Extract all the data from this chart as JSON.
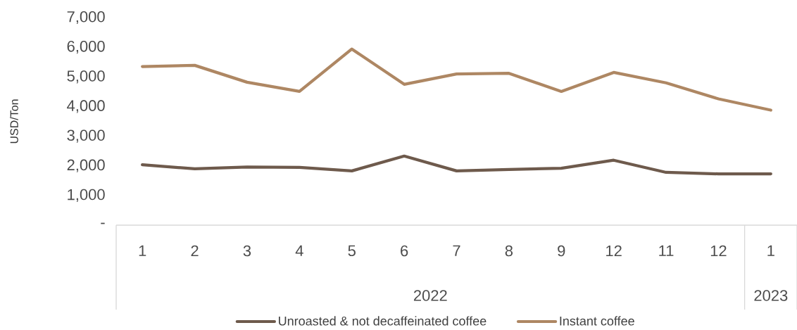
{
  "chart_data": {
    "type": "line",
    "ylabel": "USD/Ton",
    "categories": [
      "1",
      "2",
      "3",
      "4",
      "5",
      "6",
      "7",
      "8",
      "9",
      "12",
      "11",
      "12",
      "1"
    ],
    "series": [
      {
        "name": "Unroasted & not decaffeinated coffee",
        "color": "#6e5a4c",
        "values": [
          2040,
          1900,
          1960,
          1950,
          1830,
          2330,
          1830,
          1880,
          1920,
          2190,
          1780,
          1730,
          1730
        ]
      },
      {
        "name": "Instant coffee",
        "color": "#ae8763",
        "values": [
          5350,
          5390,
          4820,
          4510,
          5940,
          4750,
          5100,
          5120,
          4510,
          5150,
          4800,
          4260,
          3880
        ]
      }
    ],
    "ylim": [
      0,
      7000
    ],
    "yticks": [
      {
        "value": 0,
        "label": "-"
      },
      {
        "value": 1000,
        "label": "1,000"
      },
      {
        "value": 2000,
        "label": "2,000"
      },
      {
        "value": 3000,
        "label": "3,000"
      },
      {
        "value": 4000,
        "label": "4,000"
      },
      {
        "value": 5000,
        "label": "5,000"
      },
      {
        "value": 6000,
        "label": "6,000"
      },
      {
        "value": 7000,
        "label": "7,000"
      }
    ],
    "annotations": [
      "2022",
      "2023"
    ],
    "grid": false,
    "legend": "bottom",
    "marker": "none",
    "line_style": "solid"
  }
}
